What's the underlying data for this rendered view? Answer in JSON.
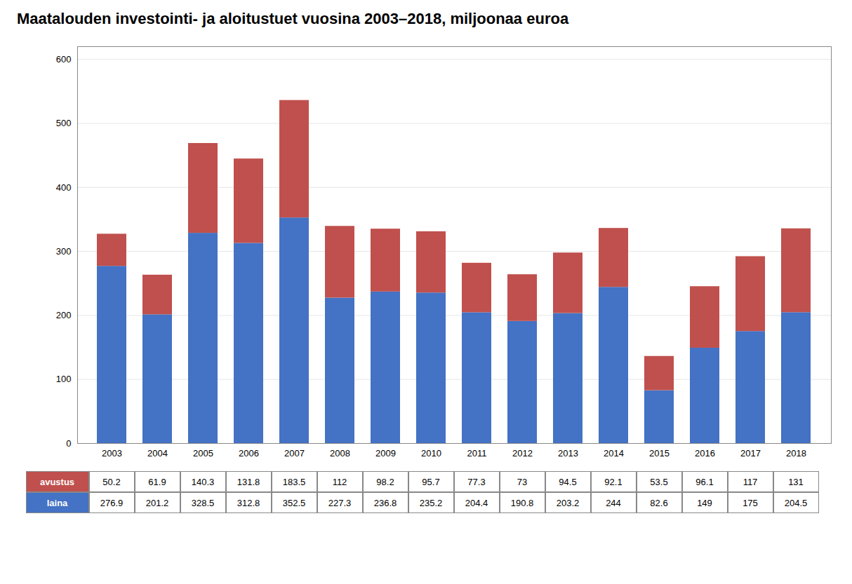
{
  "chart_data": {
    "type": "bar",
    "stacked": true,
    "grid": true,
    "title": "Maatalouden investointi- ja aloitustuet vuosina 2003–2018, miljoonaa euroa",
    "categories": [
      "2003",
      "2004",
      "2005",
      "2006",
      "2007",
      "2008",
      "2009",
      "2010",
      "2011",
      "2012",
      "2013",
      "2014",
      "2015",
      "2016",
      "2017",
      "2018"
    ],
    "series": [
      {
        "name": "laina",
        "color": "#4472C4",
        "values": [
          276.9,
          201.2,
          328.5,
          312.8,
          352.5,
          227.3,
          236.8,
          235.2,
          204.4,
          190.8,
          203.2,
          244,
          82.6,
          149,
          175,
          204.5
        ]
      },
      {
        "name": "avustus",
        "color": "#C0504D",
        "values": [
          50.2,
          61.9,
          140.3,
          131.8,
          183.5,
          112,
          98.2,
          95.7,
          77.3,
          73,
          94.5,
          92.1,
          53.5,
          96.1,
          117,
          131
        ]
      }
    ],
    "ylim": [
      0,
      620
    ],
    "yticks": [
      0,
      100,
      200,
      300,
      400,
      500,
      600
    ]
  }
}
